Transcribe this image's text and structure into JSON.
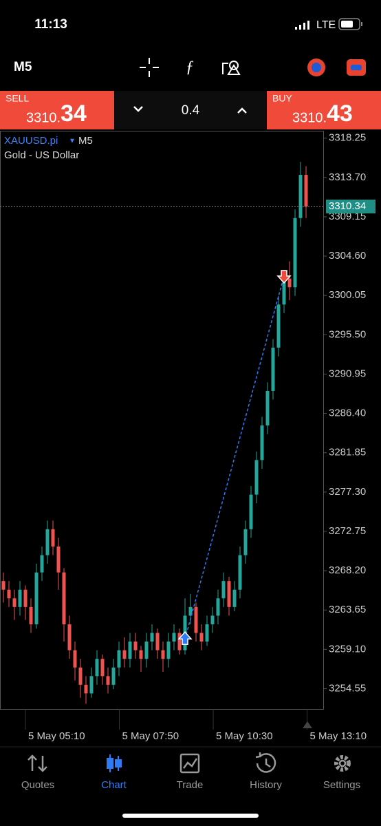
{
  "status_bar": {
    "time": "11:13",
    "network": "LTE"
  },
  "toolbar": {
    "timeframe": "M5"
  },
  "trade_panel": {
    "sell": {
      "label": "SELL",
      "price_main": "3310.",
      "price_pips": "34"
    },
    "lot": "0.4",
    "buy": {
      "label": "BUY",
      "price_main": "3310.",
      "price_pips": "43"
    }
  },
  "chart_data": {
    "type": "candlestick",
    "symbol": "XAUUSD.pi",
    "timeframe": "M5",
    "description": "Gold - US Dollar",
    "ylim": [
      3252.2,
      3319.1
    ],
    "yticks": [
      3318.25,
      {
        "value": 3313.7,
        "label": "3313.70"
      },
      3309.15,
      {
        "value": 3304.6,
        "label": "3304.60"
      },
      3300.05,
      {
        "value": 3295.5,
        "label": "3295.50"
      },
      3290.95,
      {
        "value": 3286.4,
        "label": "3286.40"
      },
      3281.85,
      {
        "value": 3277.3,
        "label": "3277.30"
      },
      3272.75,
      {
        "value": 3268.2,
        "label": "3268.20"
      },
      3263.65,
      {
        "value": 3259.1,
        "label": "3259.10"
      },
      3254.55
    ],
    "xtick_labels": [
      "5 May 05:10",
      "5 May 07:50",
      "5 May 10:30",
      "5 May 13:10"
    ],
    "last_price": 3310.34,
    "up_color": "#26a69a",
    "down_color": "#ef5350",
    "candles": [
      [
        3267,
        3268,
        3264.5,
        3266
      ],
      [
        3266,
        3267,
        3264,
        3265
      ],
      [
        3265,
        3266,
        3262.5,
        3264
      ],
      [
        3264,
        3267,
        3263,
        3266
      ],
      [
        3266,
        3266.5,
        3262.5,
        3264
      ],
      [
        3264,
        3265,
        3261,
        3262
      ],
      [
        3262,
        3269,
        3261.5,
        3268
      ],
      [
        3268,
        3271,
        3267,
        3270
      ],
      [
        3270,
        3274,
        3269,
        3273
      ],
      [
        3273,
        3274,
        3270,
        3271
      ],
      [
        3271,
        3272,
        3266,
        3268
      ],
      [
        3268,
        3268.5,
        3260,
        3262
      ],
      [
        3262,
        3263,
        3258,
        3259
      ],
      [
        3259,
        3260,
        3255.5,
        3257
      ],
      [
        3257,
        3258,
        3253.5,
        3255
      ],
      [
        3255,
        3256,
        3252.8,
        3254
      ],
      [
        3254,
        3257,
        3253.5,
        3256
      ],
      [
        3256,
        3259,
        3255,
        3258
      ],
      [
        3258,
        3258.5,
        3255,
        3256
      ],
      [
        3256,
        3257,
        3254,
        3255
      ],
      [
        3255,
        3258,
        3254.5,
        3257
      ],
      [
        3257,
        3260,
        3256,
        3259
      ],
      [
        3259,
        3260.5,
        3257,
        3258
      ],
      [
        3258,
        3261,
        3257,
        3260
      ],
      [
        3260,
        3261,
        3258,
        3259
      ],
      [
        3259,
        3259.5,
        3256.5,
        3258
      ],
      [
        3258,
        3261,
        3257,
        3260
      ],
      [
        3260,
        3262,
        3259,
        3261
      ],
      [
        3261,
        3261.5,
        3258,
        3259
      ],
      [
        3259,
        3260,
        3256.5,
        3258
      ],
      [
        3258,
        3261,
        3257,
        3260
      ],
      [
        3260,
        3262,
        3259,
        3261
      ],
      [
        3261,
        3261.5,
        3258.5,
        3259
      ],
      [
        3259,
        3265,
        3258.5,
        3263
      ],
      [
        3263,
        3265.5,
        3262,
        3264
      ],
      [
        3264,
        3264.5,
        3260,
        3261
      ],
      [
        3261,
        3262,
        3259,
        3260
      ],
      [
        3260,
        3263,
        3259.5,
        3262
      ],
      [
        3262,
        3264,
        3261,
        3263
      ],
      [
        3263,
        3266,
        3262,
        3265
      ],
      [
        3265,
        3268,
        3264,
        3267
      ],
      [
        3267,
        3267.5,
        3263,
        3264
      ],
      [
        3264,
        3267,
        3263.5,
        3266
      ],
      [
        3266,
        3271,
        3265,
        3270
      ],
      [
        3270,
        3274,
        3269,
        3273
      ],
      [
        3273,
        3278,
        3272,
        3277
      ],
      [
        3277,
        3282,
        3276,
        3281
      ],
      [
        3281,
        3286,
        3280,
        3285
      ],
      [
        3285,
        3290,
        3284,
        3289
      ],
      [
        3289,
        3295,
        3288,
        3294
      ],
      [
        3294,
        3300,
        3293,
        3299
      ],
      [
        3299,
        3303,
        3298,
        3302
      ],
      [
        3302,
        3304,
        3299.5,
        3301
      ],
      [
        3301,
        3310,
        3300,
        3309
      ],
      [
        3309,
        3315.5,
        3308,
        3314
      ],
      [
        3314,
        3315,
        3309,
        3310.34
      ]
    ],
    "trades": [
      {
        "side": "buy",
        "candle": 33,
        "price": 3260.3
      },
      {
        "side": "sell",
        "candle": 51,
        "price": 3302.3
      }
    ]
  },
  "nav": [
    {
      "label": "Quotes"
    },
    {
      "label": "Chart",
      "active": true
    },
    {
      "label": "Trade"
    },
    {
      "label": "History"
    },
    {
      "label": "Settings"
    }
  ]
}
